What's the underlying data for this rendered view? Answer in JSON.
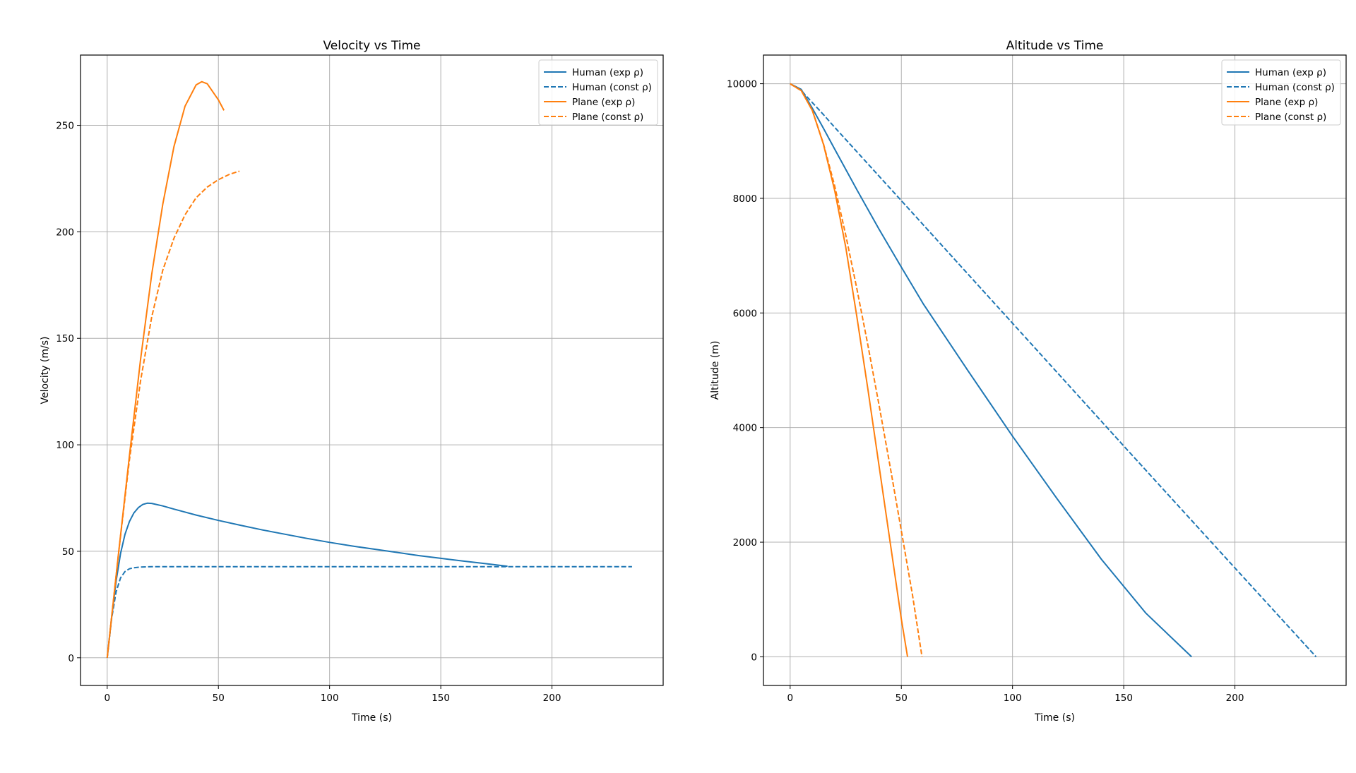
{
  "chart_data": [
    {
      "type": "line",
      "title": "Velocity vs Time",
      "xlabel": "Time (s)",
      "ylabel": "Velocity (m/s)",
      "xlim": [
        -12,
        250
      ],
      "ylim": [
        -13,
        283
      ],
      "xticks": [
        0,
        50,
        100,
        150,
        200
      ],
      "yticks": [
        0,
        50,
        100,
        150,
        200,
        250
      ],
      "grid": true,
      "legend_position": "top-right",
      "series": [
        {
          "name": "Human (exp ρ)",
          "color": "#1f77b4",
          "dash": "solid",
          "x": [
            0,
            2,
            4,
            6,
            8,
            10,
            12,
            14,
            16,
            18,
            20,
            25,
            30,
            40,
            50,
            60,
            70,
            80,
            90,
            100,
            110,
            120,
            130,
            140,
            150,
            160,
            170,
            180
          ],
          "y": [
            0,
            19,
            36,
            49,
            58,
            64,
            68,
            70.5,
            72,
            72.6,
            72.5,
            71.3,
            69.8,
            67,
            64.5,
            62.2,
            60,
            58,
            56,
            54.2,
            52.5,
            51,
            49.5,
            48,
            46.7,
            45.4,
            44.2,
            43
          ]
        },
        {
          "name": "Human (const ρ)",
          "color": "#1f77b4",
          "dash": "dashed",
          "x": [
            0,
            2,
            4,
            6,
            8,
            10,
            12,
            15,
            20,
            30,
            50,
            100,
            150,
            200,
            236
          ],
          "y": [
            0,
            18.5,
            31,
            37.5,
            40.5,
            41.8,
            42.3,
            42.6,
            42.8,
            42.8,
            42.8,
            42.8,
            42.8,
            42.8,
            42.8
          ]
        },
        {
          "name": "Plane (exp ρ)",
          "color": "#ff7f0e",
          "dash": "solid",
          "x": [
            0,
            5,
            10,
            15,
            20,
            25,
            30,
            35,
            40,
            42.5,
            45,
            48,
            50,
            52.5
          ],
          "y": [
            0,
            48,
            95,
            140,
            180,
            213,
            240,
            259,
            269,
            270.5,
            269.5,
            265,
            262,
            257
          ]
        },
        {
          "name": "Plane (const ρ)",
          "color": "#ff7f0e",
          "dash": "dashed",
          "x": [
            0,
            5,
            10,
            15,
            20,
            25,
            30,
            35,
            40,
            45,
            50,
            55,
            59.5
          ],
          "y": [
            0,
            48,
            93,
            130,
            160,
            182,
            197,
            208,
            216,
            221,
            224.5,
            227,
            228.5
          ]
        }
      ]
    },
    {
      "type": "line",
      "title": "Altitude vs Time",
      "xlabel": "Time (s)",
      "ylabel": "Altitude (m)",
      "xlim": [
        -12,
        250
      ],
      "ylim": [
        -500,
        10500
      ],
      "xticks": [
        0,
        50,
        100,
        150,
        200
      ],
      "yticks": [
        0,
        2000,
        4000,
        6000,
        8000,
        10000
      ],
      "grid": true,
      "legend_position": "top-right",
      "series": [
        {
          "name": "Human (exp ρ)",
          "color": "#1f77b4",
          "dash": "solid",
          "x": [
            0,
            5,
            10,
            15,
            20,
            30,
            40,
            50,
            60,
            80,
            100,
            120,
            140,
            160,
            180.5
          ],
          "y": [
            10000,
            9900,
            9570,
            9220,
            8860,
            8150,
            7460,
            6800,
            6150,
            4990,
            3850,
            2760,
            1700,
            760,
            0
          ]
        },
        {
          "name": "Human (const ρ)",
          "color": "#1f77b4",
          "dash": "dashed",
          "x": [
            0,
            5,
            10,
            15,
            20,
            50,
            100,
            150,
            200,
            236.5
          ],
          "y": [
            10000,
            9880,
            9670,
            9460,
            9240,
            7960,
            5820,
            3680,
            1550,
            0
          ]
        },
        {
          "name": "Plane (exp ρ)",
          "color": "#ff7f0e",
          "dash": "solid",
          "x": [
            0,
            5,
            10,
            15,
            20,
            25,
            30,
            35,
            40,
            45,
            50,
            52.8
          ],
          "y": [
            10000,
            9880,
            9530,
            8940,
            8140,
            7150,
            5930,
            4660,
            3330,
            1990,
            660,
            0
          ]
        },
        {
          "name": "Plane (const ρ)",
          "color": "#ff7f0e",
          "dash": "dashed",
          "x": [
            0,
            5,
            10,
            15,
            20,
            25,
            30,
            35,
            40,
            45,
            50,
            55,
            59.3
          ],
          "y": [
            10000,
            9880,
            9530,
            8950,
            8220,
            7360,
            6420,
            5430,
            4390,
            3310,
            2200,
            1080,
            0
          ]
        }
      ]
    }
  ]
}
